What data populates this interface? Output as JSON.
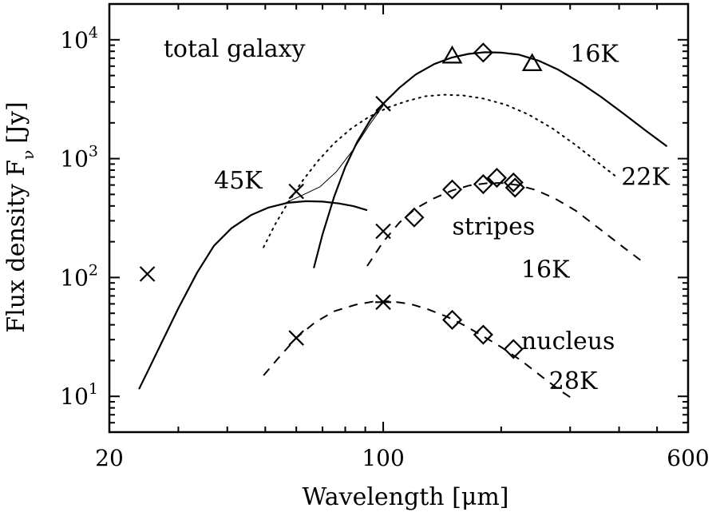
{
  "chart_data": {
    "type": "scatter",
    "title": "",
    "xlabel": "Wavelength [μm]",
    "ylabel_main": "Flux density F",
    "ylabel_sub": "ν",
    "ylabel_unit": "[Jy]",
    "xscale": "log",
    "yscale": "log",
    "xlim": [
      20,
      600
    ],
    "ylim": [
      5,
      20000
    ],
    "x_ticks": [
      {
        "value": 20,
        "label": "20"
      },
      {
        "value": 100,
        "label": "100"
      },
      {
        "value": 600,
        "label": "600"
      }
    ],
    "y_ticks": [
      {
        "value": 10,
        "base": "10",
        "exp": "1"
      },
      {
        "value": 100,
        "base": "10",
        "exp": "2"
      },
      {
        "value": 1000,
        "base": "10",
        "exp": "3"
      },
      {
        "value": 10000,
        "base": "10",
        "exp": "4"
      }
    ],
    "grid": false,
    "annotations": [
      {
        "text": "total galaxy",
        "x": 27.5,
        "y": 7200
      },
      {
        "text": "16K",
        "x": 300,
        "y": 6500
      },
      {
        "text": "45K",
        "x": 37,
        "y": 560
      },
      {
        "text": "22K",
        "x": 405,
        "y": 600
      },
      {
        "text": "stripes",
        "x": 150,
        "y": 230
      },
      {
        "text": "16K",
        "x": 225,
        "y": 100
      },
      {
        "text": "nucleus",
        "x": 225,
        "y": 25
      },
      {
        "text": "28K",
        "x": 265,
        "y": 11.5
      }
    ],
    "series": [
      {
        "style": "solid",
        "width": 2.2,
        "points": [
          [
            23.8,
            11.5
          ],
          [
            25,
            16
          ],
          [
            27,
            27
          ],
          [
            30,
            55
          ],
          [
            33.5,
            110
          ],
          [
            37,
            185
          ],
          [
            41,
            260
          ],
          [
            46,
            335
          ],
          [
            51,
            388
          ],
          [
            57,
            425
          ],
          [
            63.5,
            438
          ],
          [
            70,
            435
          ],
          [
            77,
            420
          ],
          [
            84,
            398
          ],
          [
            91,
            368
          ]
        ]
      },
      {
        "style": "solid",
        "width": 2.2,
        "points": [
          [
            66.5,
            120
          ],
          [
            70,
            230
          ],
          [
            75,
            480
          ],
          [
            80,
            850
          ],
          [
            86,
            1400
          ],
          [
            93,
            2150
          ],
          [
            100,
            2900
          ],
          [
            110,
            3950
          ],
          [
            121,
            5100
          ],
          [
            135,
            6250
          ],
          [
            150,
            7100
          ],
          [
            165,
            7600
          ],
          [
            182,
            7850
          ],
          [
            200,
            7800
          ],
          [
            222,
            7500
          ],
          [
            250,
            6650
          ],
          [
            280,
            5600
          ],
          [
            320,
            4300
          ],
          [
            360,
            3300
          ],
          [
            410,
            2400
          ],
          [
            470,
            1700
          ],
          [
            530,
            1270
          ]
        ]
      },
      {
        "style": "thin",
        "width": 1.0,
        "points": [
          [
            55,
            410
          ],
          [
            62,
            490
          ],
          [
            69,
            580
          ],
          [
            76,
            780
          ],
          [
            84,
            1200
          ],
          [
            92,
            1900
          ],
          [
            100,
            2800
          ]
        ]
      },
      {
        "style": "dotted",
        "width": 2.0,
        "points": [
          [
            49.5,
            180
          ],
          [
            53,
            280
          ],
          [
            57,
            420
          ],
          [
            62,
            640
          ],
          [
            68,
            950
          ],
          [
            75,
            1350
          ],
          [
            83,
            1800
          ],
          [
            92,
            2250
          ],
          [
            103,
            2700
          ],
          [
            115,
            3050
          ],
          [
            128,
            3350
          ],
          [
            143,
            3450
          ],
          [
            160,
            3400
          ],
          [
            180,
            3200
          ],
          [
            205,
            2850
          ],
          [
            235,
            2350
          ],
          [
            270,
            1800
          ],
          [
            310,
            1300
          ],
          [
            350,
            950
          ],
          [
            390,
            720
          ]
        ]
      },
      {
        "style": "dashed",
        "width": 2.0,
        "points": [
          [
            91,
            125
          ],
          [
            100,
            200
          ],
          [
            110,
            290
          ],
          [
            121,
            380
          ],
          [
            134,
            460
          ],
          [
            150,
            540
          ],
          [
            166,
            595
          ],
          [
            183,
            620
          ],
          [
            200,
            625
          ],
          [
            220,
            600
          ],
          [
            245,
            545
          ],
          [
            275,
            460
          ],
          [
            310,
            365
          ],
          [
            355,
            260
          ],
          [
            410,
            180
          ],
          [
            460,
            135
          ]
        ]
      },
      {
        "style": "dashed",
        "width": 2.0,
        "points": [
          [
            49.5,
            15
          ],
          [
            54,
            21
          ],
          [
            60,
            31
          ],
          [
            67,
            42
          ],
          [
            75,
            52
          ],
          [
            85,
            59
          ],
          [
            95,
            63
          ],
          [
            105,
            63
          ],
          [
            117,
            60
          ],
          [
            130,
            54
          ],
          [
            145,
            47
          ],
          [
            160,
            40
          ],
          [
            180,
            32
          ],
          [
            200,
            26
          ],
          [
            225,
            20
          ],
          [
            255,
            14.5
          ],
          [
            285,
            11
          ],
          [
            305,
            9.5
          ]
        ]
      }
    ],
    "markers": [
      {
        "type": "cross",
        "x": 25,
        "y": 107
      },
      {
        "type": "cross",
        "x": 60,
        "y": 530
      },
      {
        "type": "cross",
        "x": 100,
        "y": 2900
      },
      {
        "type": "cross",
        "x": 100,
        "y": 245
      },
      {
        "type": "cross",
        "x": 60,
        "y": 31
      },
      {
        "type": "asterisk",
        "x": 100,
        "y": 62
      },
      {
        "type": "triangle",
        "x": 150,
        "y": 7300
      },
      {
        "type": "triangle",
        "x": 240,
        "y": 6300
      },
      {
        "type": "diamond",
        "x": 180,
        "y": 7800
      },
      {
        "type": "diamond",
        "x": 120,
        "y": 320
      },
      {
        "type": "diamond",
        "x": 150,
        "y": 550
      },
      {
        "type": "diamond",
        "x": 180,
        "y": 610
      },
      {
        "type": "diamond",
        "x": 195,
        "y": 690
      },
      {
        "type": "diamond",
        "x": 215,
        "y": 630
      },
      {
        "type": "diamond",
        "x": 217,
        "y": 570
      },
      {
        "type": "diamond",
        "x": 150,
        "y": 44
      },
      {
        "type": "diamond",
        "x": 180,
        "y": 33
      },
      {
        "type": "diamond",
        "x": 215,
        "y": 25
      }
    ]
  }
}
